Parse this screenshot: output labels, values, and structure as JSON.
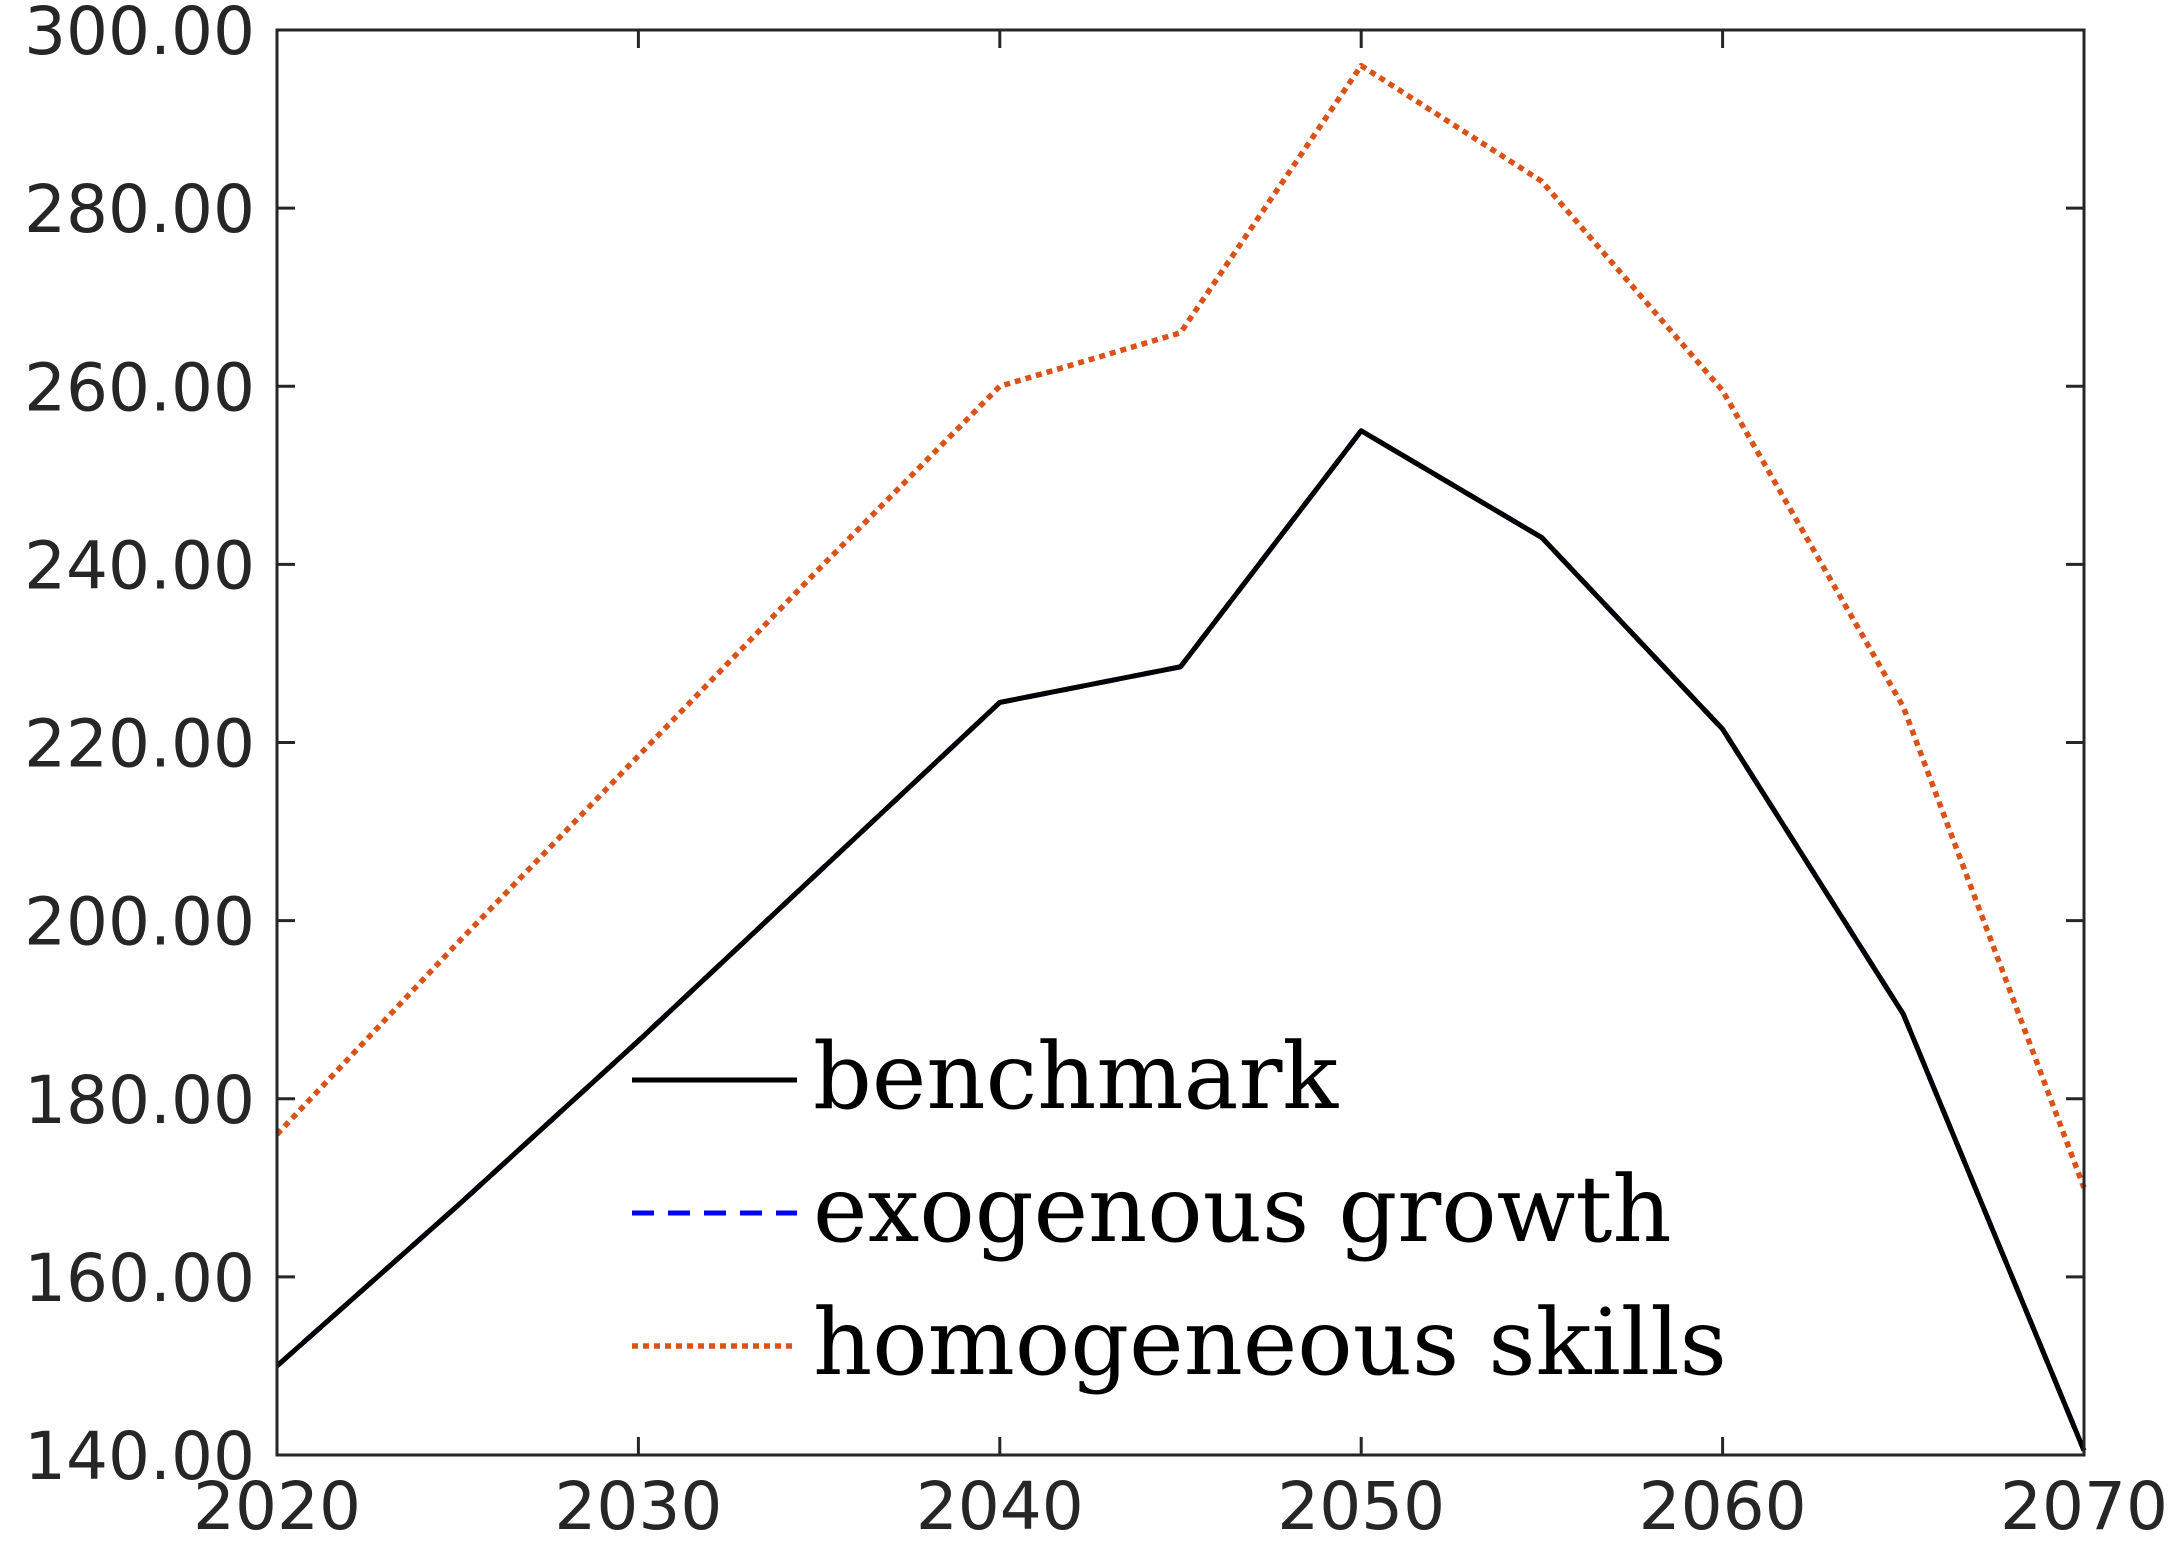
{
  "chart_data": {
    "type": "line",
    "title": "",
    "xlabel": "",
    "ylabel": "",
    "xlim": [
      2020,
      2070
    ],
    "ylim": [
      140,
      300
    ],
    "x_ticks": [
      2020,
      2030,
      2040,
      2050,
      2060,
      2070
    ],
    "x_tick_labels": [
      "2020",
      "2030",
      "2040",
      "2050",
      "2060",
      "2070"
    ],
    "y_ticks": [
      140,
      160,
      180,
      200,
      220,
      240,
      260,
      280,
      300
    ],
    "y_tick_labels": [
      "140.00",
      "160.00",
      "180.00",
      "200.00",
      "220.00",
      "240.00",
      "260.00",
      "280.00",
      "300.00"
    ],
    "x": [
      2020,
      2025,
      2030,
      2035,
      2040,
      2045,
      2050,
      2055,
      2060,
      2065,
      2070
    ],
    "series": [
      {
        "name": "benchmark",
        "color": "#000000",
        "style": "solid",
        "values": [
          150,
          168,
          186.5,
          205.5,
          224.5,
          228.5,
          255,
          243,
          221.5,
          189.5,
          140.5
        ]
      },
      {
        "name": "exogenous growth",
        "color": "#0000ff",
        "style": "dashed",
        "values": [
          150,
          168,
          186.5,
          205.5,
          224.5,
          228.5,
          255,
          243,
          221.5,
          189.5,
          140.5
        ]
      },
      {
        "name": "homogeneous skills",
        "color": "#d95319",
        "style": "dotted",
        "values": [
          176,
          197.5,
          218.5,
          239.5,
          260,
          266,
          296,
          283,
          259.5,
          224,
          170
        ]
      }
    ],
    "legend": {
      "placement": "lower-center",
      "box": false
    },
    "grid": false
  }
}
